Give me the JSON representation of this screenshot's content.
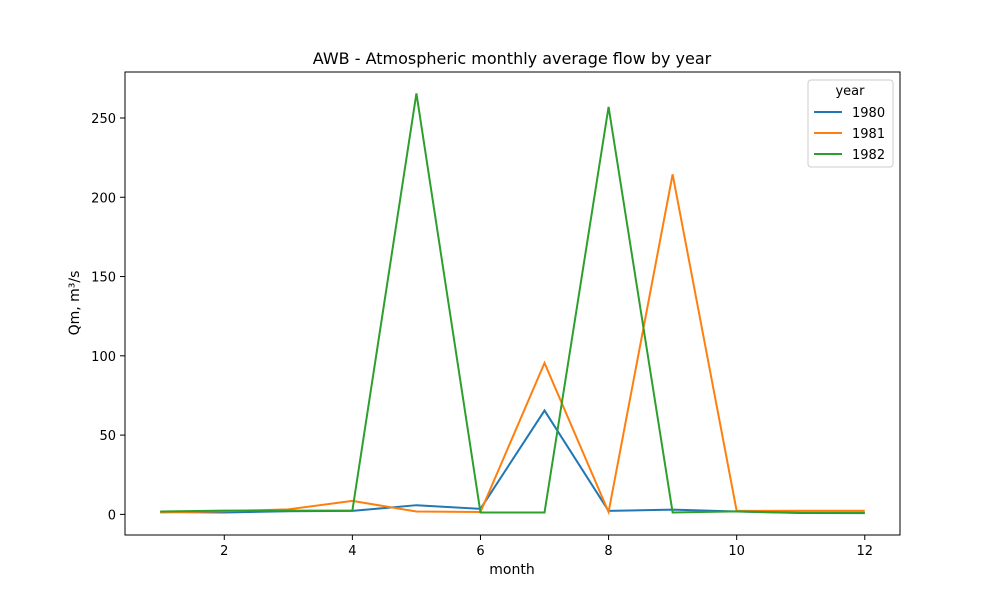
{
  "chart_data": {
    "type": "line",
    "title": "AWB - Atmospheric monthly average flow by year",
    "xlabel": "month",
    "ylabel": "Qm, m³/s",
    "xlim": [
      0.45,
      12.55
    ],
    "ylim": [
      -13,
      279
    ],
    "xticks": [
      2,
      4,
      6,
      8,
      10,
      12
    ],
    "yticks": [
      0,
      50,
      100,
      150,
      200,
      250
    ],
    "grid": false,
    "legend": {
      "title": "year",
      "placement": "top-right"
    },
    "x": [
      1,
      2,
      3,
      4,
      5,
      6,
      7,
      8,
      9,
      10,
      11,
      12
    ],
    "series": [
      {
        "name": "1980",
        "color": "#1f77b4",
        "values": [
          1.5,
          1.2,
          2.0,
          2.2,
          5.8,
          3.5,
          65.5,
          2.2,
          3.0,
          1.8,
          0.9,
          0.8
        ]
      },
      {
        "name": "1981",
        "color": "#ff7f0e",
        "values": [
          1.2,
          2.0,
          3.2,
          8.5,
          1.8,
          1.5,
          95.5,
          1.5,
          214.5,
          2.2,
          2.3,
          2.3
        ]
      },
      {
        "name": "1982",
        "color": "#2ca02c",
        "values": [
          1.8,
          2.4,
          2.4,
          2.4,
          265.5,
          1.2,
          1.2,
          257.0,
          1.2,
          1.9,
          1.0,
          1.0
        ]
      }
    ]
  }
}
